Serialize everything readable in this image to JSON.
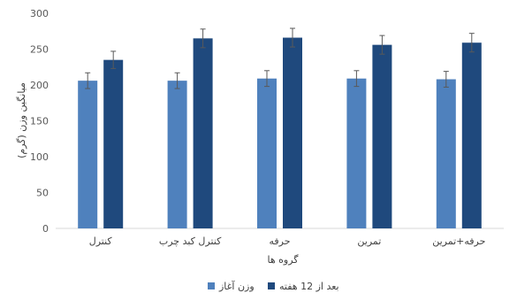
{
  "chart_data": {
    "type": "bar",
    "categories": [
      "کنترل",
      "کنترل کبد چرب",
      "حرفه",
      "تمرین",
      "حرفه+تمرین"
    ],
    "series": [
      {
        "name": "وزن آغاز",
        "color": "#4F81BD",
        "values": [
          206,
          206,
          209,
          209,
          208
        ],
        "errors": [
          11,
          11,
          11,
          11,
          11
        ]
      },
      {
        "name": "بعد از 12 هفته",
        "color": "#1F497D",
        "values": [
          235,
          265,
          266,
          256,
          259
        ],
        "errors": [
          12,
          13,
          13,
          13,
          13
        ]
      }
    ],
    "xlabel": "گروه ها",
    "ylabel": "میانگین وزن (گرم)",
    "ylim": [
      0,
      300
    ],
    "yticks": [
      0,
      50,
      100,
      150,
      200,
      250,
      300
    ],
    "grid": false,
    "legend_position": "bottom"
  }
}
